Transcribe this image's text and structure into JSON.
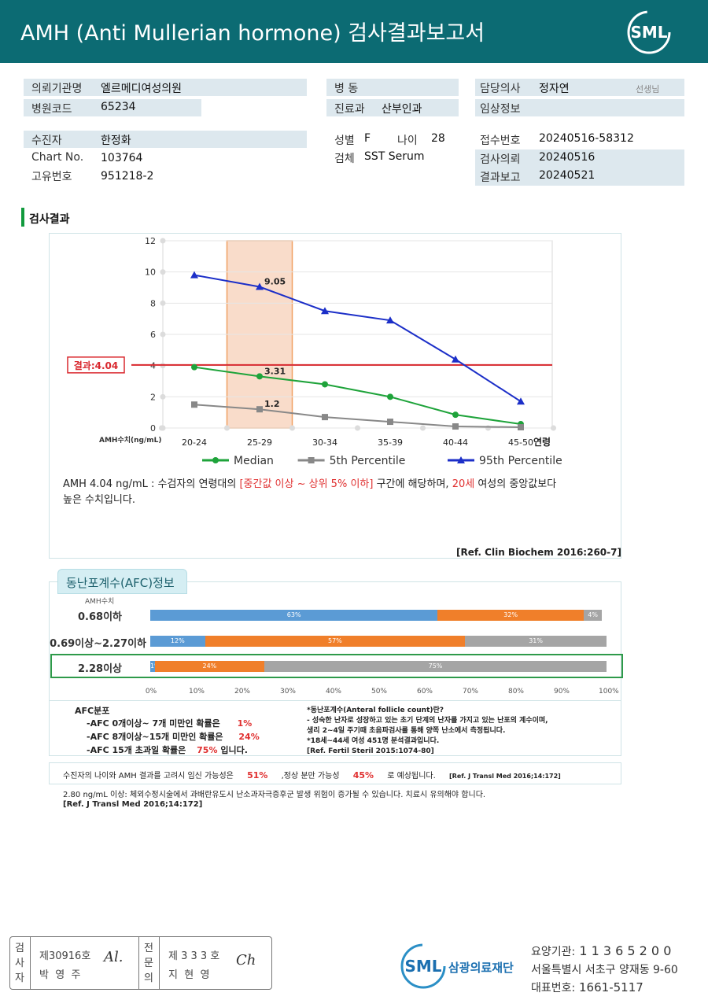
{
  "header": {
    "title": "AMH (Anti Mullerian hormone) 검사결과보고서",
    "logo": "SML"
  },
  "info": {
    "institution_label": "의뢰기관명",
    "institution": "엘르메디여성의원",
    "code_label": "병원코드",
    "code": "65234",
    "patient_label": "수진자",
    "patient": "한정화",
    "chart_label": "Chart No.",
    "chart": "103764",
    "uid_label": "고유번호",
    "uid": "951218-2",
    "ward_label": "병 동",
    "ward": "",
    "dept_label": "진료과",
    "dept": "산부인과",
    "sex_label": "성별",
    "sex": "F",
    "age_label": "나이",
    "age": "28",
    "specimen_label": "검체",
    "specimen": "SST Serum",
    "doctor_label": "담당의사",
    "doctor": "정자연",
    "doctor_suffix": "선생님",
    "clinical_label": "임상정보",
    "clinical": "",
    "receipt_label": "접수번호",
    "receipt": "20240516-58312",
    "req_label": "검사의뢰",
    "req": "20240516",
    "report_label": "결과보고",
    "report": "20240521"
  },
  "section_title": "검사결과",
  "chart_data": {
    "type": "line",
    "categories": [
      "20-24",
      "25-29",
      "30-34",
      "35-39",
      "40-44",
      "45-50"
    ],
    "ylabel": "AMH수치(ng/mL)",
    "xlabel": "연령",
    "ylim": [
      0,
      12
    ],
    "yticks": [
      0,
      2,
      4,
      6,
      8,
      10,
      12
    ],
    "highlight_category": "25-29",
    "result_line": {
      "value": 4.04,
      "label": "결과:4.04"
    },
    "series": [
      {
        "name": "Median",
        "color": "#1ea33a",
        "marker": "circle",
        "values": [
          3.9,
          3.31,
          2.8,
          2.0,
          0.85,
          0.25
        ]
      },
      {
        "name": "5th Percentile",
        "color": "#888888",
        "marker": "square",
        "values": [
          1.5,
          1.2,
          0.7,
          0.4,
          0.1,
          0.05
        ]
      },
      {
        "name": "95th Percentile",
        "color": "#1c2fc8",
        "marker": "triangle",
        "values": [
          9.8,
          9.05,
          7.5,
          6.9,
          4.4,
          1.7
        ]
      }
    ],
    "data_labels": [
      {
        "series": 0,
        "index": 1,
        "text": "3.31"
      },
      {
        "series": 1,
        "index": 1,
        "text": "1.2"
      },
      {
        "series": 2,
        "index": 1,
        "text": "9.05"
      }
    ],
    "grid": true,
    "legend": "bottom"
  },
  "desc": {
    "p1": "AMH  4.04 ng/mL : 수검자의 연령대의 ",
    "p2": "[중간값 이상 ~ 상위 5% 이하]",
    "p3": "  구간에 해당하며, ",
    "p4": "20세",
    "p5": " 여성의 중앙값보다",
    "p6": "높은 수치입니다.",
    "ref": "[Ref. Clin Biochem 2016:260-7]"
  },
  "afc": {
    "tab": "동난포계수(AFC)정보",
    "amh_label": "AMH수치",
    "rows": [
      {
        "label": "0.68이하",
        "segments": [
          63,
          32,
          4
        ],
        "texts": [
          "63%",
          "32%",
          "4%"
        ]
      },
      {
        "label": "0.69이상~2.27이하",
        "segments": [
          12,
          57,
          31
        ],
        "texts": [
          "12%",
          "57%",
          "31%"
        ]
      },
      {
        "label": "2.28이상",
        "segments": [
          1,
          24,
          75
        ],
        "texts": [
          "1%",
          "24%",
          "75%"
        ]
      }
    ],
    "colors": [
      "#5b9bd5",
      "#f07f2a",
      "#a5a5a5"
    ],
    "axis": [
      "0%",
      "10%",
      "20%",
      "30%",
      "40%",
      "50%",
      "60%",
      "70%",
      "80%",
      "90%",
      "100%"
    ],
    "dist_title": "AFC분포",
    "l1a": "-AFC  0개이상~ 7개 미만인 확률은",
    "l1b": "1%",
    "l2a": "-AFC  8개이상~15개 미만인 확률은",
    "l2b": "24%",
    "l3a": "-AFC  15개 초과일 확률은",
    "l3b": "75%",
    "l3c": "입니다.",
    "n1": "*동난포계수(Anteral follicle count)란?",
    "n2": "- 성숙한 난자로 성장하고 있는 초기 단계의 난자를 가지고 있는 난포의 계수이며,",
    "n3": "  생리 2~4일 주기때 초음파검사를 통해 양쪽 난소에서 측정됩니다.",
    "n4": "*18세~44세 여성 451명 분석결과입니다.",
    "n5": "[Ref. Fertil Steril 2015:1074-80]"
  },
  "preg": {
    "t1": "수진자의  나이와 AMH 결과를 고려시 임신 가능성은",
    "v1": "51%",
    "t2": ",정상 분만 가능성",
    "v2": "45%",
    "t3": "로 예상됩니다.",
    "ref": "[Ref. J Transl Med 2016;14:172]"
  },
  "warn": {
    "text": "2.80  ng/mL  이상: 체외수정시술에서 과배란유도시 난소과자극증후군 발생 위험이 증가될 수 있습니다. 치료시 유의해야 합니다.",
    "ref": "[Ref. J Transl Med 2016;14:172]"
  },
  "footer": {
    "c1": "검사자",
    "n1": "제30916호",
    "name1": "박  영  주",
    "sig1": "Al.",
    "c2": "전문의",
    "n2": "제 3 3 3 호",
    "name2": "지  현  영",
    "sig2": "Ch",
    "logo": "SML",
    "org": "삼광의료재단",
    "inst_label": "요양기관:",
    "inst": " 1 1 3 6 5 2 0 0",
    "addr": "서울특별시 서초구 양재동 9-60",
    "tel_label": "대표번호:",
    "tel": " 1661-5117"
  }
}
